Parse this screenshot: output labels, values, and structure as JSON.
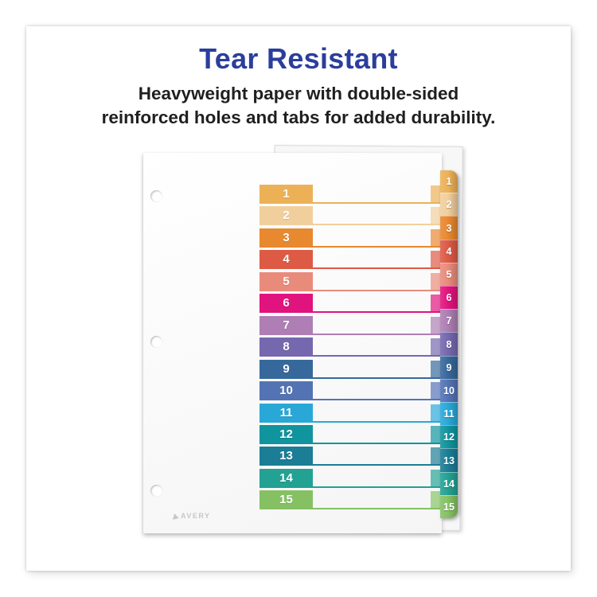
{
  "header": {
    "title": "Tear Resistant",
    "subtitle_line1": "Heavyweight paper with double-sided",
    "subtitle_line2": "reinforced holes and tabs for added durability.",
    "title_color": "#2b3e9c",
    "subtitle_color": "#1f1f1f"
  },
  "divider": {
    "brand": "AVERY",
    "tab_count": 15,
    "hole_count": 3,
    "rows": [
      {
        "num": "1",
        "color": "#ecb157"
      },
      {
        "num": "2",
        "color": "#f1cf9d"
      },
      {
        "num": "3",
        "color": "#e8882f"
      },
      {
        "num": "4",
        "color": "#dd5a45"
      },
      {
        "num": "5",
        "color": "#e98b7b"
      },
      {
        "num": "6",
        "color": "#e1137e"
      },
      {
        "num": "7",
        "color": "#ae7eb4"
      },
      {
        "num": "8",
        "color": "#7568ae"
      },
      {
        "num": "9",
        "color": "#37689b"
      },
      {
        "num": "10",
        "color": "#5473b5"
      },
      {
        "num": "11",
        "color": "#29a8d8"
      },
      {
        "num": "12",
        "color": "#10949e"
      },
      {
        "num": "13",
        "color": "#1b7d96"
      },
      {
        "num": "14",
        "color": "#23a193"
      },
      {
        "num": "15",
        "color": "#85c163"
      }
    ]
  }
}
